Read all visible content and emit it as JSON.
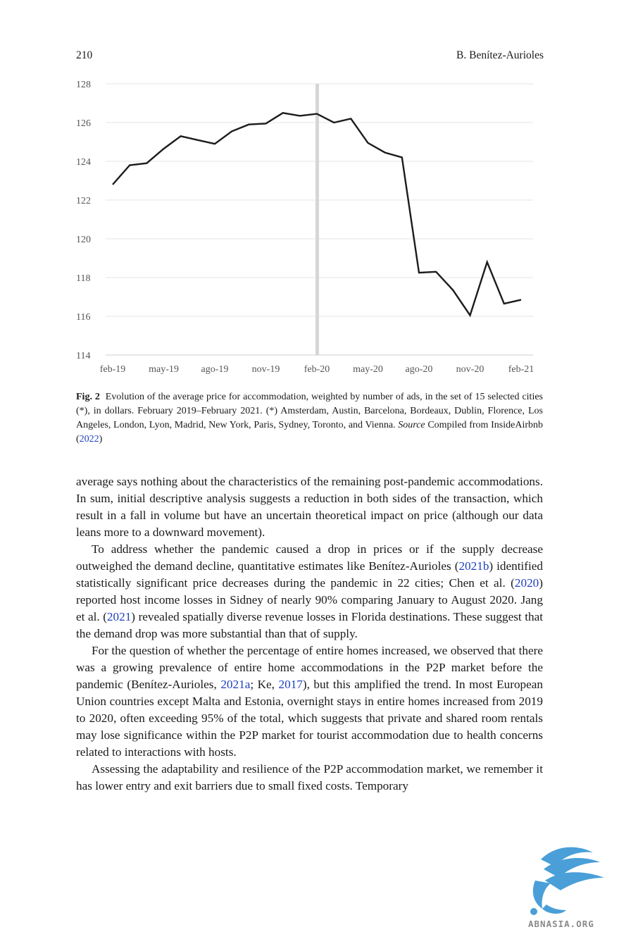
{
  "header": {
    "page_number": "210",
    "author": "B. Benítez-Aurioles"
  },
  "chart_data": {
    "type": "line",
    "x": [
      "feb-19",
      "mar-19",
      "apr-19",
      "may-19",
      "jun-19",
      "jul-19",
      "ago-19",
      "sep-19",
      "oct-19",
      "nov-19",
      "dec-19",
      "jan-20",
      "feb-20",
      "mar-20",
      "apr-20",
      "may-20",
      "jun-20",
      "jul-20",
      "ago-20",
      "sep-20",
      "oct-20",
      "nov-20",
      "dec-20",
      "jan-21",
      "feb-21"
    ],
    "values": [
      122.8,
      123.8,
      123.9,
      124.65,
      125.3,
      125.1,
      124.9,
      125.55,
      125.9,
      125.95,
      126.5,
      126.35,
      126.45,
      126.0,
      126.2,
      124.95,
      124.45,
      124.2,
      118.25,
      118.3,
      117.35,
      116.05,
      118.8,
      116.65,
      116.85
    ],
    "tick_labels": [
      "feb-19",
      "may-19",
      "ago-19",
      "nov-19",
      "feb-20",
      "may-20",
      "ago-20",
      "nov-20",
      "feb-21"
    ],
    "yticks": [
      "114",
      "116",
      "118",
      "120",
      "122",
      "124",
      "126",
      "128"
    ],
    "ylim": [
      114,
      128
    ],
    "marker_x": "feb-20",
    "grid": true,
    "series_color": "#1c1c1c",
    "marker_color": "#d6d6d6"
  },
  "caption": {
    "label": "Fig. 2",
    "text": "Evolution of the average price for accommodation, weighted by number of ads, in the set of 15 selected cities (*), in dollars. February 2019–February 2021. (*) Amsterdam, Austin, Barcelona, Bordeaux, Dublin, Florence, Los Angeles, London, Lyon, Madrid, New York, Paris, Sydney, Toronto, and Vienna.",
    "source_label": "Source",
    "source_text": "Compiled from InsideAirbnb (",
    "source_link": "2022",
    "source_close": ")"
  },
  "paragraphs": {
    "p1": "average says nothing about the characteristics of the remaining post-pandemic accommodations. In sum, initial descriptive analysis suggests a reduction in both sides of the transaction, which result in a fall in volume but have an uncertain theoretical impact on price (although our data leans more to a downward movement).",
    "p2": {
      "a": "To address whether the pandemic caused a drop in prices or if the supply decrease outweighed the demand decline, quantitative estimates like Benítez-Aurioles (",
      "l1": "2021b",
      "b": ") identified statistically significant price decreases during the pandemic in 22 cities; Chen et al. (",
      "l2": "2020",
      "c": ") reported host income losses in Sidney of nearly 90% comparing January to August 2020. Jang et al. (",
      "l3": "2021",
      "d": ") revealed spatially diverse revenue losses in Florida destinations. These suggest that the demand drop was more substantial than that of supply."
    },
    "p3": {
      "a": "For the question of whether the percentage of entire homes increased, we observed that there was a growing prevalence of entire home accommodations in the P2P market before the pandemic (Benítez-Aurioles, ",
      "l1": "2021a",
      "b": "; Ke, ",
      "l2": "2017",
      "c": "), but this amplified the trend. In most European Union countries except Malta and Estonia, overnight stays in entire homes increased from 2019 to 2020, often exceeding 95% of the total, which suggests that private and shared room rentals may lose significance within the P2P market for tourist accommodation due to health concerns related to interactions with hosts."
    },
    "p4": "Assessing the adaptability and resilience of the P2P accommodation market, we remember it has lower entry and exit barriers due to small fixed costs. Temporary"
  },
  "watermark": {
    "text": "ABNASIA.ORG",
    "color": "#4a9fd8"
  }
}
